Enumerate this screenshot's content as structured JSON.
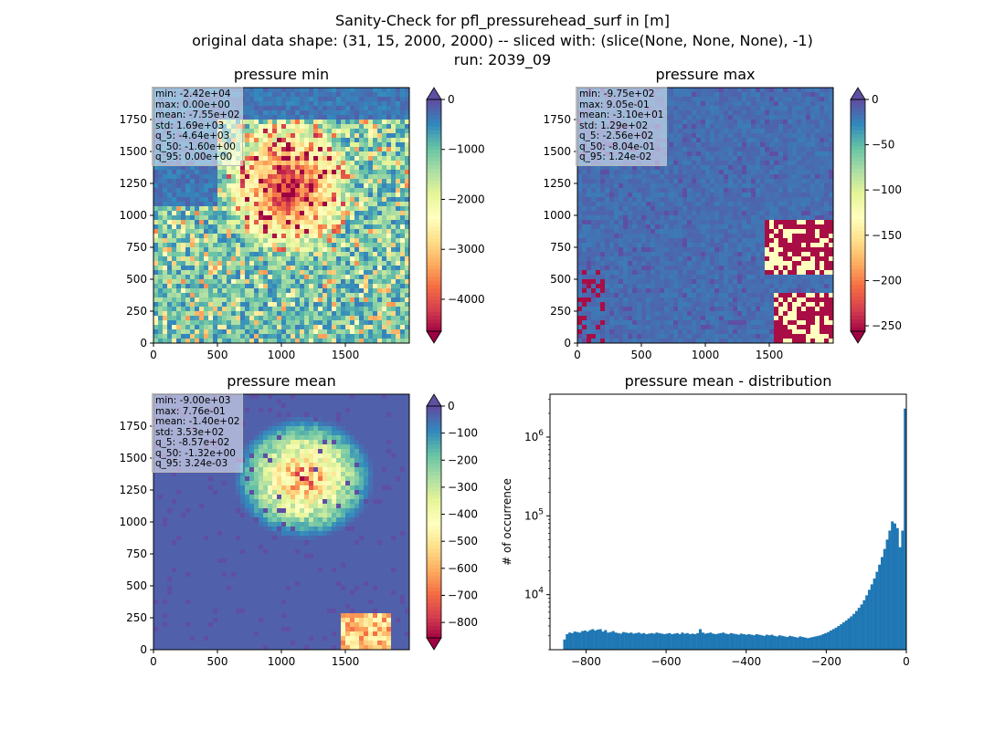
{
  "suptitle": {
    "line1": "Sanity-Check for pfl_pressurehead_surf in [m]",
    "line2": "original data shape: (31, 15, 2000, 2000) -- sliced with: (slice(None, None, None), -1)",
    "line3": "run: 2039_09"
  },
  "chart_data": [
    {
      "type": "heatmap",
      "title": "pressure min",
      "xlim": [
        0,
        2000
      ],
      "ylim": [
        0,
        2000
      ],
      "x_ticks": [
        0,
        500,
        1000,
        1500
      ],
      "y_ticks": [
        0,
        250,
        500,
        750,
        1000,
        1250,
        1500,
        1750
      ],
      "colormap": "Spectral",
      "colorbar": {
        "range": [
          -4640,
          0
        ],
        "ticks": [
          0,
          -1000,
          -2000,
          -3000,
          -4000
        ],
        "tick_labels": [
          "0",
          "−1000",
          "−2000",
          "−3000",
          "−4000"
        ],
        "extend": "both"
      },
      "stats": [
        "min: -2.42e+04",
        "max: 0.00e+00",
        "mean: -7.55e+02",
        "std: 1.69e+03",
        "q_5: -4.64e+03",
        "q_50: -1.60e+00",
        "q_95: 0.00e+00"
      ]
    },
    {
      "type": "heatmap",
      "title": "pressure max",
      "xlim": [
        0,
        2000
      ],
      "ylim": [
        0,
        2000
      ],
      "x_ticks": [
        0,
        500,
        1000,
        1500
      ],
      "y_ticks": [
        0,
        250,
        500,
        750,
        1000,
        1250,
        1500,
        1750
      ],
      "colormap": "Spectral",
      "colorbar": {
        "range": [
          -256,
          0
        ],
        "ticks": [
          0,
          -50,
          -100,
          -150,
          -200,
          -250
        ],
        "tick_labels": [
          "0",
          "−50",
          "−100",
          "−150",
          "−200",
          "−250"
        ],
        "extend": "both"
      },
      "stats": [
        "min: -9.75e+02",
        "max: 9.05e-01",
        "mean: -3.10e+01",
        "std: 1.29e+02",
        "q_5: -2.56e+02",
        "q_50: -8.04e-01",
        "q_95: 1.24e-02"
      ]
    },
    {
      "type": "heatmap",
      "title": "pressure mean",
      "xlim": [
        0,
        2000
      ],
      "ylim": [
        0,
        2000
      ],
      "x_ticks": [
        0,
        500,
        1000,
        1500
      ],
      "y_ticks": [
        0,
        250,
        500,
        750,
        1000,
        1250,
        1500,
        1750
      ],
      "colormap": "Spectral",
      "colorbar": {
        "range": [
          -857,
          0
        ],
        "ticks": [
          0,
          -100,
          -200,
          -300,
          -400,
          -500,
          -600,
          -700,
          -800
        ],
        "tick_labels": [
          "0",
          "−100",
          "−200",
          "−300",
          "−400",
          "−500",
          "−600",
          "−700",
          "−800"
        ],
        "extend": "both"
      },
      "stats": [
        "min: -9.00e+03",
        "max: 7.76e-01",
        "mean: -1.40e+02",
        "std: 3.53e+02",
        "q_5: -8.57e+02",
        "q_50: -1.32e+00",
        "q_95: 3.24e-03"
      ]
    },
    {
      "type": "bar",
      "title": "pressure mean - distribution",
      "xlabel": "",
      "ylabel": "# of occurrence",
      "xlim": [
        -890,
        0
      ],
      "ylim": [
        2000,
        3500000
      ],
      "yscale": "log",
      "x_ticks": [
        -800,
        -600,
        -400,
        -200,
        0
      ],
      "x_tick_labels": [
        "−800",
        "−600",
        "−400",
        "−200",
        "0"
      ],
      "y_ticks": [
        10000,
        100000,
        1000000
      ],
      "y_tick_labels": [
        "10^4",
        "10^5",
        "10^6"
      ],
      "color": "#1f77b4",
      "bin_start": -857,
      "bin_end": 0,
      "counts": [
        2700,
        3150,
        3300,
        3250,
        3400,
        3350,
        3300,
        3450,
        3500,
        3400,
        3550,
        3650,
        3500,
        3600,
        3650,
        3400,
        3550,
        3300,
        3350,
        3450,
        3300,
        3250,
        3200,
        3350,
        3300,
        3250,
        3300,
        3200,
        3250,
        3300,
        3200,
        3250,
        3150,
        3200,
        3250,
        3200,
        3300,
        3250,
        3200,
        3150,
        3200,
        3250,
        3150,
        3200,
        3250,
        3150,
        3300,
        3200,
        3250,
        3150,
        3200,
        3150,
        3250,
        3650,
        3300,
        3200,
        3250,
        3300,
        3200,
        3150,
        3200,
        3250,
        3300,
        3200,
        3150,
        3250,
        3200,
        3150,
        3100,
        3200,
        3150,
        3100,
        3150,
        3100,
        3050,
        3150,
        3100,
        3050,
        3000,
        3100,
        3050,
        3100,
        3000,
        2950,
        3050,
        3000,
        2950,
        2900,
        3000,
        2950,
        2900,
        2850,
        2950,
        2900,
        2850,
        2800,
        2850,
        2900,
        2950,
        3000,
        3050,
        3150,
        3250,
        3350,
        3500,
        3650,
        3800,
        4000,
        4200,
        4450,
        4700,
        5000,
        5300,
        5700,
        6200,
        6800,
        7500,
        8500,
        9800,
        11500,
        13500,
        16000,
        19500,
        24000,
        30000,
        38000,
        50000,
        65000,
        85000,
        80000,
        70000,
        40000,
        65000,
        2300000
      ]
    }
  ]
}
